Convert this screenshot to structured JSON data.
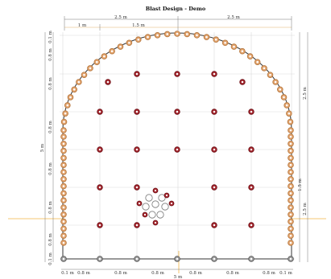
{
  "title": "Blast Design - Demo",
  "top_dims": {
    "left_half": "2.5 m",
    "right_half": "2.5 m",
    "seg_a": "1 m",
    "seg_b": "1.5 m"
  },
  "left_dims": {
    "top_small": "0.1 m",
    "upper": [
      "0.8 m",
      "0.8 m",
      "0.8 m",
      "0.8 m",
      "0.8 m",
      "0.8 m"
    ],
    "overall": "5 m",
    "bottom_small": "0.1 m"
  },
  "right_dims": {
    "upper": "2.5 m",
    "lower_a": "1.5 m",
    "lower_b": "2.5 m"
  },
  "bottom_dims": {
    "labels": [
      "0.1 m",
      "0.8 m",
      "0.8 m",
      "0.8 m",
      "0.8 m",
      "0.8 m",
      "0.8 m",
      "0.1 m"
    ],
    "overall": "5 m"
  },
  "colors": {
    "contour_hole": "#e0a26c",
    "production_hole": "#a3242c",
    "lifter_hole": "#9a9a9a",
    "relief_hole": "#ffffff",
    "grid": "#d9d9d9",
    "tunnel_outline": "#333333",
    "axis_guide": "#f2b544"
  }
}
